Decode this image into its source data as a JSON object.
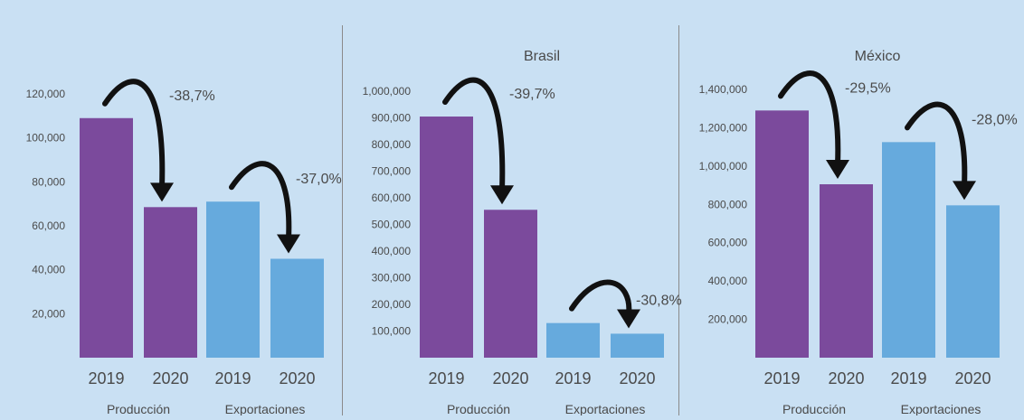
{
  "colors": {
    "background": "#c9e0f3",
    "produccion": "#7b4a9c",
    "exportaciones": "#66aadd",
    "arrow": "#111111",
    "divider": "#8a8a8a",
    "text": "#4a4a4a"
  },
  "chart_data": [
    {
      "type": "bar",
      "title": "",
      "categories": [
        "2019",
        "2020",
        "2019",
        "2020"
      ],
      "groups": [
        "Producción",
        "Exportaciones"
      ],
      "values": [
        109000,
        68500,
        71000,
        45000
      ],
      "bar_colors": [
        "produccion",
        "produccion",
        "exportaciones",
        "exportaciones"
      ],
      "ylim": [
        0,
        120000
      ],
      "yticks": [
        "20,000",
        "40,000",
        "60,000",
        "80,000",
        "100,000",
        "120,000"
      ],
      "annotations": [
        {
          "from": 0,
          "to": 1,
          "label": "-38,7%"
        },
        {
          "from": 2,
          "to": 3,
          "label": "-37,0%"
        }
      ]
    },
    {
      "type": "bar",
      "title": "Brasil",
      "categories": [
        "2019",
        "2020",
        "2019",
        "2020"
      ],
      "groups": [
        "Producción",
        "Exportaciones"
      ],
      "values": [
        905000,
        555000,
        130000,
        90000
      ],
      "bar_colors": [
        "produccion",
        "produccion",
        "exportaciones",
        "exportaciones"
      ],
      "ylim": [
        0,
        1000000
      ],
      "yticks": [
        "100,000",
        "200,000",
        "300,000",
        "400,000",
        "500,000",
        "600,000",
        "700,000",
        "800,000",
        "900,000",
        "1,000,000"
      ],
      "annotations": [
        {
          "from": 0,
          "to": 1,
          "label": "-39,7%"
        },
        {
          "from": 2,
          "to": 3,
          "label": "-30,8%"
        }
      ]
    },
    {
      "type": "bar",
      "title": "México",
      "categories": [
        "2019",
        "2020",
        "2019",
        "2020"
      ],
      "groups": [
        "Producción",
        "Exportaciones"
      ],
      "values": [
        1290000,
        905000,
        1125000,
        795000
      ],
      "bar_colors": [
        "produccion",
        "produccion",
        "exportaciones",
        "exportaciones"
      ],
      "ylim": [
        0,
        1400000
      ],
      "yticks": [
        "200,000",
        "400,000",
        "600,000",
        "800,000",
        "1,000,000",
        "1,200,000",
        "1,400,000"
      ],
      "annotations": [
        {
          "from": 0,
          "to": 1,
          "label": "-29,5%"
        },
        {
          "from": 2,
          "to": 3,
          "label": "-28,0%"
        }
      ]
    }
  ]
}
